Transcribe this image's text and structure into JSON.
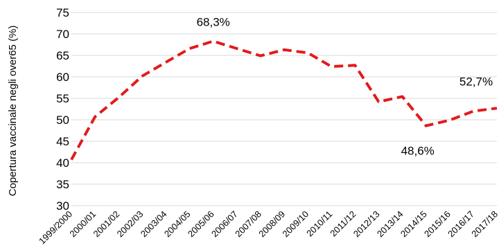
{
  "chart_data": {
    "type": "line",
    "ylabel": "Copertura vaccinale negli over65 (%)",
    "xlabel": "",
    "ylim": [
      30,
      75
    ],
    "yticks": [
      30,
      35,
      40,
      45,
      50,
      55,
      60,
      65,
      70,
      75
    ],
    "grid": true,
    "categories": [
      "1999/2000",
      "2000/01",
      "2001/02",
      "2002/03",
      "2003/04",
      "2004/05",
      "2005/06",
      "2006/07",
      "2007/08",
      "2008/09",
      "2009/10",
      "2010/11",
      "2011/12",
      "2012/13",
      "2013/14",
      "2014/15",
      "2015/16",
      "2016/17",
      "2017/18"
    ],
    "series": [
      {
        "color": "#e31a1c",
        "values": [
          40.7,
          50.7,
          55.2,
          60.2,
          63.4,
          66.6,
          68.3,
          66.6,
          64.9,
          66.3,
          65.6,
          62.4,
          62.7,
          54.2,
          55.4,
          48.6,
          49.9,
          52.0,
          52.7
        ]
      }
    ],
    "annotations": [
      {
        "text": "68,3%",
        "category": "2005/06",
        "value": 68.3
      },
      {
        "text": "48,6%",
        "category": "2014/15",
        "value": 48.6
      },
      {
        "text": "52,7%",
        "category": "2017/18",
        "value": 52.7
      }
    ]
  }
}
